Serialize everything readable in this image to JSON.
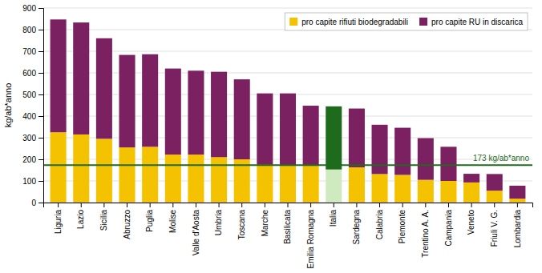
{
  "chart_data": {
    "type": "bar",
    "stacked": true,
    "categories": [
      "Liguria",
      "Lazio",
      "Sicilia",
      "Abruzzo",
      "Puglia",
      "Molise",
      "Valle d'Aosta",
      "Umbria",
      "Toscana",
      "Marche",
      "Basilicata",
      "Emilia Romagna",
      "Italia",
      "Sardegna",
      "Calabria",
      "Piemonte",
      "Trentino A. A.",
      "Campania",
      "Veneto",
      "Friuli V. G.",
      "Lombardia"
    ],
    "series": [
      {
        "name": "pro capite rifiuti biodegradabili",
        "color": "#f5c200",
        "colors": [
          "#f5c200",
          "#f5c200",
          "#f5c200",
          "#f5c200",
          "#f5c200",
          "#f5c200",
          "#f5c200",
          "#f5c200",
          "#f5c200",
          "#f5c200",
          "#f5c200",
          "#f5c200",
          "#d0eac0",
          "#f5c200",
          "#f5c200",
          "#f5c200",
          "#f5c200",
          "#f5c200",
          "#f5c200",
          "#f5c200",
          "#f5c200"
        ],
        "values": [
          325,
          315,
          295,
          255,
          258,
          222,
          222,
          210,
          200,
          175,
          170,
          170,
          153,
          163,
          132,
          128,
          105,
          100,
          93,
          55,
          18
        ]
      },
      {
        "name": "pro capite RU in discarica",
        "color": "#7b2060",
        "colors": [
          "#7b2060",
          "#7b2060",
          "#7b2060",
          "#7b2060",
          "#7b2060",
          "#7b2060",
          "#7b2060",
          "#7b2060",
          "#7b2060",
          "#7b2060",
          "#7b2060",
          "#7b2060",
          "#1e6b1e",
          "#7b2060",
          "#7b2060",
          "#7b2060",
          "#7b2060",
          "#7b2060",
          "#7b2060",
          "#7b2060",
          "#7b2060"
        ],
        "values": [
          522,
          518,
          465,
          428,
          428,
          398,
          388,
          395,
          370,
          330,
          335,
          278,
          292,
          272,
          228,
          218,
          193,
          158,
          40,
          77,
          60
        ]
      }
    ],
    "ylabel": "kg/ab*anno",
    "ylim": [
      0,
      900
    ],
    "yticks": [
      0,
      100,
      200,
      300,
      400,
      500,
      600,
      700,
      800,
      900
    ],
    "grid": true,
    "legend": "upper right",
    "annotations": [
      {
        "y": 173,
        "text": "173 kg/ab*anno",
        "color": "#1e6b1e"
      }
    ]
  }
}
